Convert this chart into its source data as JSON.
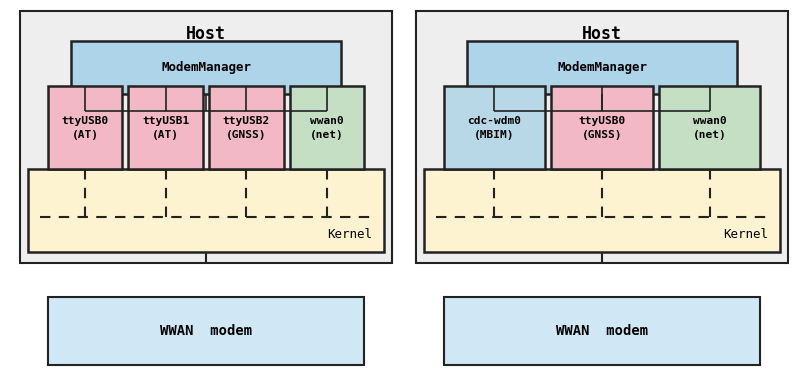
{
  "bg_color": "#eeeeee",
  "white_bg": "#ffffff",
  "diagram1": {
    "host_label": "Host",
    "modem_manager_label": "ModemManager",
    "modem_manager_color": "#aed4ea",
    "kernel_label": "Kernel",
    "kernel_color": "#fdf3d0",
    "wwan_modem_label": "WWAN  modem",
    "wwan_modem_color": "#d0e8f5",
    "devices": [
      {
        "label": "ttyUSB0\n(AT)",
        "color": "#f2b8c6"
      },
      {
        "label": "ttyUSB1\n(AT)",
        "color": "#f2b8c6"
      },
      {
        "label": "ttyUSB2\n(GNSS)",
        "color": "#f2b8c6"
      },
      {
        "label": "wwan0\n(net)",
        "color": "#c5dfc5"
      }
    ]
  },
  "diagram2": {
    "host_label": "Host",
    "modem_manager_label": "ModemManager",
    "modem_manager_color": "#aed4ea",
    "kernel_label": "Kernel",
    "kernel_color": "#fdf3d0",
    "wwan_modem_label": "WWAN  modem",
    "wwan_modem_color": "#d0e8f5",
    "devices": [
      {
        "label": "cdc-wdm0\n(MBIM)",
        "color": "#b8d8e8"
      },
      {
        "label": "ttyUSB0\n(GNSS)",
        "color": "#f2b8c6"
      },
      {
        "label": "wwan0\n(net)",
        "color": "#c5dfc5"
      }
    ]
  },
  "font_family": "monospace",
  "border_color": "#222222",
  "line_color": "#222222",
  "dash_color": "#222222"
}
